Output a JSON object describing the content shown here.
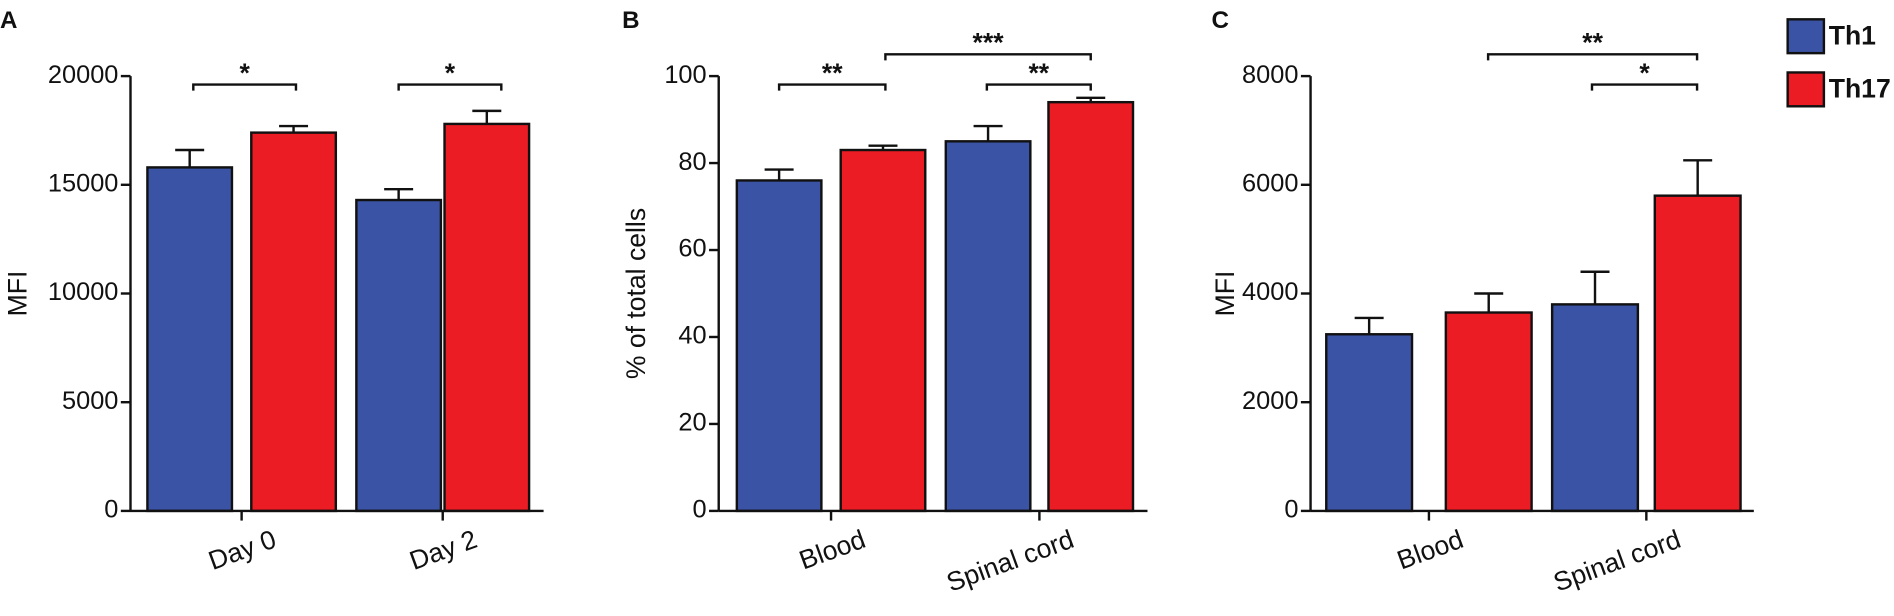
{
  "chart_data": [
    {
      "type": "bar",
      "panel": "A",
      "ylabel": "MFI",
      "categories": [
        "Day 0",
        "Day 2"
      ],
      "series": [
        {
          "color": "#3b53a4",
          "values": [
            15800,
            14300
          ],
          "errors": [
            800,
            500
          ]
        },
        {
          "color": "#ec1c24",
          "values": [
            17400,
            17800
          ],
          "errors": [
            300,
            600
          ]
        }
      ],
      "ylim": [
        0,
        20000
      ],
      "yticks": [
        0,
        5000,
        10000,
        15000,
        20000
      ],
      "annotations": [
        "*",
        "*"
      ]
    },
    {
      "type": "bar",
      "panel": "B",
      "ylabel": "% of total cells",
      "categories": [
        "Blood",
        "Spinal cord"
      ],
      "series": [
        {
          "color": "#3b53a4",
          "values": [
            76,
            85
          ],
          "errors": [
            2.5,
            3.5
          ]
        },
        {
          "color": "#ec1c24",
          "values": [
            83,
            94
          ],
          "errors": [
            1,
            1
          ]
        }
      ],
      "ylim": [
        0,
        100
      ],
      "yticks": [
        0,
        20,
        40,
        60,
        80,
        100
      ],
      "annotations": [
        "**",
        "***",
        "**"
      ]
    },
    {
      "type": "bar",
      "panel": "C",
      "ylabel": "MFI",
      "categories": [
        "Blood",
        "Spinal cord"
      ],
      "series": [
        {
          "name": "Th1",
          "color": "#3b53a4",
          "values": [
            3250,
            3800
          ],
          "errors": [
            300,
            600
          ]
        },
        {
          "name": "Th17",
          "color": "#ec1c24",
          "values": [
            3650,
            5800
          ],
          "errors": [
            350,
            650
          ]
        }
      ],
      "ylim": [
        0,
        8000
      ],
      "yticks": [
        0,
        2000,
        4000,
        6000,
        8000
      ],
      "annotations": [
        "**",
        "*"
      ],
      "legend": "right"
    }
  ]
}
